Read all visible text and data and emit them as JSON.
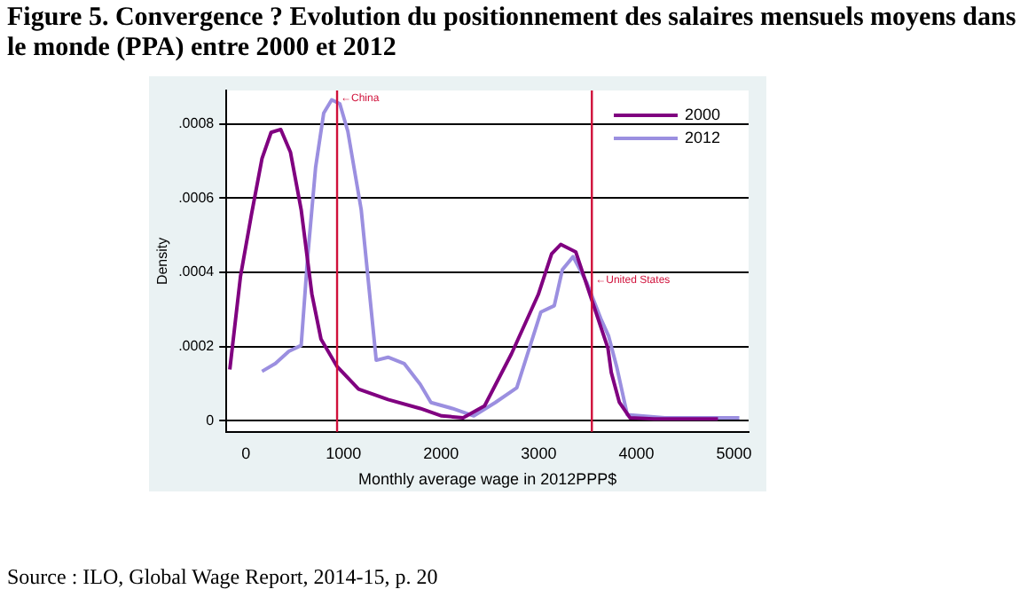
{
  "chart_data": {
    "type": "line",
    "title": "Figure 5. Convergence ? Evolution du positionnement des salaires mensuels moyens dans le monde (PPA) entre 2000 et 2012",
    "xlabel": "Monthly average wage in 2012PPP$",
    "ylabel": "Density",
    "xlim": [
      -200,
      5150
    ],
    "xticks": [
      0,
      1000,
      2000,
      3000,
      4000,
      5000
    ],
    "ylim": [
      -3e-05,
      0.00089
    ],
    "yticks": [
      0,
      {
        "value": 0.0002,
        "label": ".0002"
      },
      {
        "value": 0.0004,
        "label": ".0004"
      },
      {
        "value": 0.0006,
        "label": ".0006"
      },
      {
        "value": 0.0008,
        "label": ".0008"
      }
    ],
    "grid": "y",
    "legend": "top right",
    "marker": "none",
    "line_style": "solid",
    "series": [
      {
        "name": "2000",
        "color": "#800080",
        "x": [
          -165,
          -55,
          55,
          165,
          258,
          357,
          456,
          566,
          676,
          769,
          934,
          1154,
          1456,
          1786,
          2005,
          2225,
          2445,
          2720,
          2995,
          3132,
          3225,
          3379,
          3544,
          3709,
          3743,
          3825,
          3934,
          4180,
          4500,
          4836
        ],
        "values": [
          0.000138,
          0.00039,
          0.000553,
          0.000707,
          0.000777,
          0.000785,
          0.000724,
          0.000569,
          0.000341,
          0.00022,
          0.000146,
          8.5e-05,
          5.7e-05,
          3.3e-05,
          1.3e-05,
          8e-06,
          4e-05,
          0.00018,
          0.00034,
          0.00045,
          0.000475,
          0.000455,
          0.000325,
          0.000195,
          0.00013,
          5e-05,
          8e-06,
          5e-06,
          5e-06,
          5e-06
        ]
      },
      {
        "name": "2012",
        "color": "#9b8fe0",
        "x": [
          165,
          302,
          440,
          566,
          632,
          714,
          797,
          879,
          962,
          1044,
          1181,
          1335,
          1456,
          1621,
          1786,
          1896,
          2115,
          2335,
          2555,
          2775,
          3022,
          3159,
          3242,
          3352,
          3489,
          3634,
          3716,
          3798,
          3907,
          4290,
          5055
        ],
        "values": [
          0.000133,
          0.000154,
          0.000187,
          0.000203,
          0.000439,
          0.000683,
          0.000829,
          0.000865,
          0.000854,
          0.00078,
          0.000569,
          0.000163,
          0.000171,
          0.000154,
          9.8e-05,
          4.9e-05,
          3.3e-05,
          1.3e-05,
          4.9e-05,
          8.9e-05,
          0.000293,
          0.00031,
          0.000407,
          0.000442,
          0.000374,
          0.000276,
          0.000228,
          0.000146,
          1.6e-05,
          8e-06,
          8e-06
        ]
      }
    ],
    "ref_lines": [
      {
        "axis": "x",
        "value": 934,
        "color": "#d0103a"
      },
      {
        "axis": "x",
        "value": 3544,
        "color": "#d0103a"
      }
    ],
    "annotations": [
      {
        "text": "←China",
        "x": 934,
        "y": 0.00087
      },
      {
        "text": "←United States",
        "x": 3544,
        "y": 0.00038
      },
      "Source : ILO, Global Wage Report, 2014-15, p. 20"
    ]
  }
}
